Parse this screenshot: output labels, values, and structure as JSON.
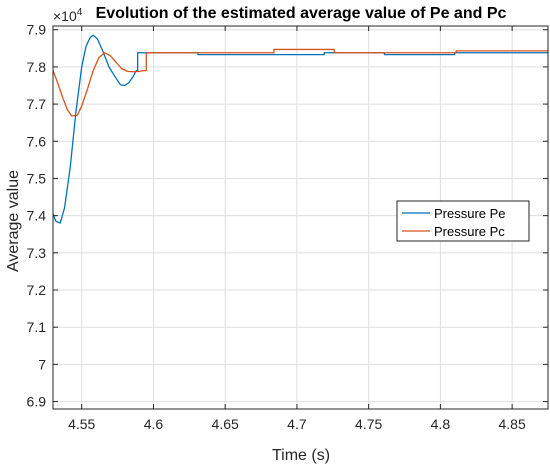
{
  "chart_data": {
    "type": "line",
    "title": "Evolution of the estimated average value of Pe and Pc",
    "xlabel": "Time (s)",
    "ylabel": "Average value",
    "y_exponent_label": "×10",
    "y_exponent_power": "4",
    "xlim": [
      4.53,
      4.875
    ],
    "ylim": [
      6.88,
      7.91
    ],
    "xticks": [
      4.55,
      4.6,
      4.65,
      4.7,
      4.75,
      4.8,
      4.85
    ],
    "xtick_labels": [
      "4.55",
      "4.6",
      "4.65",
      "4.7",
      "4.75",
      "4.8",
      "4.85"
    ],
    "yticks": [
      6.9,
      7.0,
      7.1,
      7.2,
      7.3,
      7.4,
      7.5,
      7.6,
      7.7,
      7.8,
      7.9
    ],
    "ytick_labels": [
      "6.9",
      "7",
      "7.1",
      "7.2",
      "7.3",
      "7.4",
      "7.5",
      "7.6",
      "7.7",
      "7.8",
      "7.9"
    ],
    "grid": true,
    "legend_position": "center-right",
    "series": [
      {
        "name": "Pressure Pe",
        "color": "#0072BD",
        "x": [
          4.53,
          4.532,
          4.535,
          4.538,
          4.542,
          4.546,
          4.55,
          4.553,
          4.556,
          4.558,
          4.561,
          4.565,
          4.569,
          4.573,
          4.577,
          4.58,
          4.583,
          4.586,
          4.588,
          4.589,
          4.589,
          4.595,
          4.6,
          4.61,
          4.62,
          4.631,
          4.631,
          4.65,
          4.7,
          4.719,
          4.719,
          4.75,
          4.761,
          4.761,
          4.79,
          4.8,
          4.81,
          4.81,
          4.84,
          4.875
        ],
        "values": [
          7.405,
          7.385,
          7.38,
          7.42,
          7.53,
          7.68,
          7.8,
          7.855,
          7.88,
          7.885,
          7.875,
          7.84,
          7.8,
          7.775,
          7.752,
          7.75,
          7.758,
          7.775,
          7.79,
          7.79,
          7.838,
          7.838,
          7.838,
          7.838,
          7.838,
          7.838,
          7.833,
          7.833,
          7.833,
          7.833,
          7.838,
          7.838,
          7.838,
          7.833,
          7.833,
          7.833,
          7.833,
          7.838,
          7.838,
          7.838
        ]
      },
      {
        "name": "Pressure Pc",
        "color": "#D95319",
        "x": [
          4.53,
          4.533,
          4.537,
          4.54,
          4.543,
          4.547,
          4.55,
          4.554,
          4.558,
          4.562,
          4.566,
          4.57,
          4.574,
          4.578,
          4.582,
          4.586,
          4.59,
          4.593,
          4.595,
          4.595,
          4.61,
          4.65,
          4.684,
          4.684,
          4.7,
          4.726,
          4.726,
          4.75,
          4.775,
          4.8,
          4.811,
          4.811,
          4.84,
          4.875
        ],
        "values": [
          7.79,
          7.76,
          7.715,
          7.685,
          7.668,
          7.67,
          7.695,
          7.74,
          7.79,
          7.825,
          7.838,
          7.83,
          7.812,
          7.795,
          7.788,
          7.787,
          7.788,
          7.79,
          7.79,
          7.838,
          7.838,
          7.838,
          7.838,
          7.847,
          7.847,
          7.847,
          7.838,
          7.838,
          7.838,
          7.838,
          7.838,
          7.843,
          7.843,
          7.843
        ]
      }
    ]
  }
}
